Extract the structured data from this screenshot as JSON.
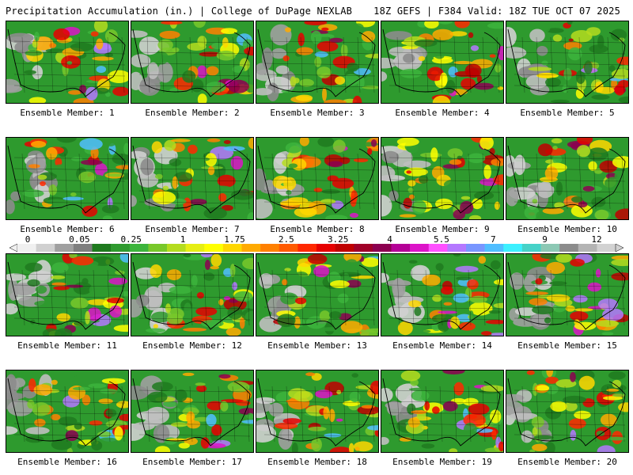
{
  "header": {
    "left": "Precipitation Accumulation (in.) | College of DuPage NEXLAB",
    "right": "18Z GEFS | F384 Valid: 18Z TUE OCT 07 2025"
  },
  "member_label_prefix": "Ensemble Member:",
  "members": [
    "1",
    "2",
    "3",
    "4",
    "5",
    "6",
    "7",
    "8",
    "9",
    "10",
    "11",
    "12",
    "13",
    "14",
    "15",
    "16",
    "17",
    "18",
    "19",
    "20"
  ],
  "colorbar": {
    "ticks": [
      "0",
      "0.05",
      "0.25",
      "1",
      "1.75",
      "2.5",
      "3.25",
      "4",
      "5.5",
      "7",
      "9",
      "12"
    ],
    "colors": [
      "#f0f0f0",
      "#d0d0d0",
      "#a0a0a0",
      "#7e7e7e",
      "#1e7a1e",
      "#2e9a2e",
      "#3cb43c",
      "#78c82a",
      "#b4dc1e",
      "#e6ee14",
      "#ffff00",
      "#ffd700",
      "#ffaa00",
      "#ff8000",
      "#ff5a00",
      "#ff2800",
      "#e60000",
      "#c00000",
      "#a00028",
      "#8c0050",
      "#b40096",
      "#dc14c8",
      "#ff50ff",
      "#b478ff",
      "#7896ff",
      "#50beff",
      "#3cf0ff",
      "#46d2c8",
      "#8cc8b4",
      "#8c8c8c",
      "#b4b4b4",
      "#d2d2d2"
    ]
  }
}
